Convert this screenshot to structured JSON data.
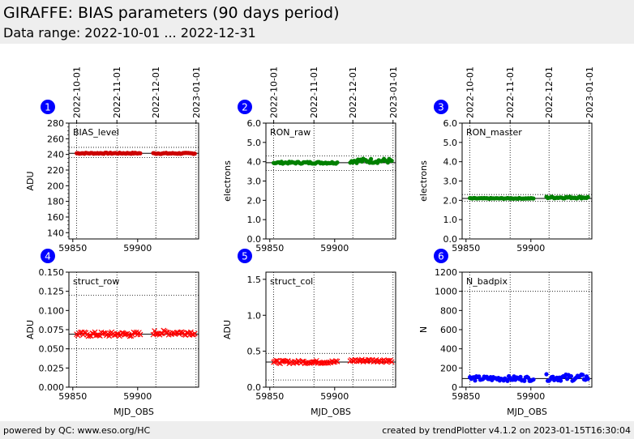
{
  "header": {
    "title": "GIRAFFE: BIAS parameters (90 days period)",
    "subtitle": "Data range: 2022-10-01 ... 2022-12-31"
  },
  "footer": {
    "left": "powered by QC: www.eso.org/HC",
    "right": "created by trendPlotter v4.1.2 on 2023-01-15T16:30:04"
  },
  "colors": {
    "red": "#ff0000",
    "green": "#008000",
    "blue": "#0000ff",
    "badge": "#0000ff"
  },
  "chart_data": [
    {
      "type": "scatter",
      "panel": "1",
      "label": "BIAS_level",
      "ylabel": "ADU",
      "ylim": [
        132,
        280
      ],
      "yticks": [
        140,
        160,
        180,
        200,
        220,
        240,
        260,
        280
      ],
      "yfmt": 0,
      "xlim": [
        59847,
        59947
      ],
      "xticks": [
        59850,
        59900
      ],
      "xlabel": "",
      "date_ticks": [
        {
          "x": 59853,
          "label": "2022-10-01"
        },
        {
          "x": 59884,
          "label": "2022-11-01"
        },
        {
          "x": 59914,
          "label": "2022-12-01"
        },
        {
          "x": 59945,
          "label": "2023-01-01"
        }
      ],
      "marker": "dot",
      "color": "#cc0000",
      "ref": 241.5,
      "limits": [
        236,
        249
      ],
      "segments": [
        {
          "x0": 59853,
          "x1": 59902,
          "step": 1,
          "y": 241.5,
          "amp": 0.7
        },
        {
          "x0": 59912,
          "x1": 59944,
          "step": 1,
          "y": 241.3,
          "amp": 0.7
        }
      ]
    },
    {
      "type": "scatter",
      "panel": "2",
      "label": "RON_raw",
      "ylabel": "electrons",
      "ylim": [
        0,
        6
      ],
      "yticks": [
        0,
        1,
        2,
        3,
        4,
        5,
        6
      ],
      "yfmt": 1,
      "xlim": [
        59847,
        59947
      ],
      "xticks": [
        59850,
        59900
      ],
      "xlabel": "",
      "date_ticks": [
        {
          "x": 59853,
          "label": "2022-10-01"
        },
        {
          "x": 59884,
          "label": "2022-11-01"
        },
        {
          "x": 59914,
          "label": "2022-12-01"
        },
        {
          "x": 59945,
          "label": "2023-01-01"
        }
      ],
      "marker": "dot",
      "color": "#008000",
      "ref": 3.95,
      "limits": [
        3.55,
        4.3
      ],
      "segments": [
        {
          "x0": 59853,
          "x1": 59902,
          "step": 1,
          "y": 3.95,
          "amp": 0.05
        },
        {
          "x0": 59912,
          "x1": 59944,
          "step": 1,
          "y": 4.05,
          "amp": 0.12
        }
      ]
    },
    {
      "type": "scatter",
      "panel": "3",
      "label": "RON_master",
      "ylabel": "electrons",
      "ylim": [
        0,
        6
      ],
      "yticks": [
        0,
        1,
        2,
        3,
        4,
        5,
        6
      ],
      "yfmt": 1,
      "xlim": [
        59847,
        59947
      ],
      "xticks": [
        59850,
        59900
      ],
      "xlabel": "",
      "date_ticks": [
        {
          "x": 59853,
          "label": "2022-10-01"
        },
        {
          "x": 59884,
          "label": "2022-11-01"
        },
        {
          "x": 59914,
          "label": "2022-12-01"
        },
        {
          "x": 59945,
          "label": "2023-01-01"
        }
      ],
      "marker": "dot",
      "color": "#008000",
      "ref": 2.1,
      "limits": [
        1.95,
        2.3
      ],
      "segments": [
        {
          "x0": 59853,
          "x1": 59902,
          "step": 1,
          "y": 2.1,
          "amp": 0.02
        },
        {
          "x0": 59912,
          "x1": 59944,
          "step": 1,
          "y": 2.15,
          "amp": 0.05
        }
      ]
    },
    {
      "type": "scatter",
      "panel": "4",
      "label": "struct_row",
      "ylabel": "ADU",
      "ylim": [
        0,
        0.15
      ],
      "yticks": [
        0,
        0.025,
        0.05,
        0.075,
        0.1,
        0.125,
        0.15
      ],
      "yfmt": 3,
      "xlim": [
        59847,
        59947
      ],
      "xticks": [
        59850,
        59900
      ],
      "xlabel": "MJD_OBS",
      "date_ticks": [],
      "marker": "x",
      "color": "#ff0000",
      "ref": 0.069,
      "limits": [
        0.05,
        0.12
      ],
      "segments": [
        {
          "x0": 59853,
          "x1": 59902,
          "step": 1,
          "y": 0.069,
          "amp": 0.003
        },
        {
          "x0": 59912,
          "x1": 59944,
          "step": 1,
          "y": 0.071,
          "amp": 0.003
        }
      ]
    },
    {
      "type": "scatter",
      "panel": "5",
      "label": "struct_col",
      "ylabel": "ADU",
      "ylim": [
        0,
        1.6
      ],
      "yticks": [
        0,
        0.5,
        1.0,
        1.5
      ],
      "yfmt": 1,
      "xlim": [
        59847,
        59947
      ],
      "xticks": [
        59850,
        59900
      ],
      "xlabel": "MJD_OBS",
      "date_ticks": [],
      "marker": "x",
      "color": "#ff0000",
      "ref": 0.35,
      "limits": [
        0.1,
        0.47
      ],
      "segments": [
        {
          "x0": 59853,
          "x1": 59902,
          "step": 1,
          "y": 0.35,
          "amp": 0.02
        },
        {
          "x0": 59912,
          "x1": 59944,
          "step": 1,
          "y": 0.37,
          "amp": 0.02
        }
      ]
    },
    {
      "type": "scatter",
      "panel": "6",
      "label": "N_badpix",
      "ylabel": "N",
      "ylim": [
        0,
        1200
      ],
      "yticks": [
        0,
        200,
        400,
        600,
        800,
        1000,
        1200
      ],
      "yfmt": 0,
      "xlim": [
        59847,
        59947
      ],
      "xticks": [
        59850,
        59900
      ],
      "xlabel": "MJD_OBS",
      "date_ticks": [],
      "marker": "dot",
      "color": "#0000ff",
      "ref": 90,
      "limits": [
        0,
        1000
      ],
      "segments": [
        {
          "x0": 59853,
          "x1": 59902,
          "step": 1,
          "y": 90,
          "amp": 25
        },
        {
          "x0": 59912,
          "x1": 59944,
          "step": 1,
          "y": 100,
          "amp": 35
        }
      ]
    }
  ]
}
